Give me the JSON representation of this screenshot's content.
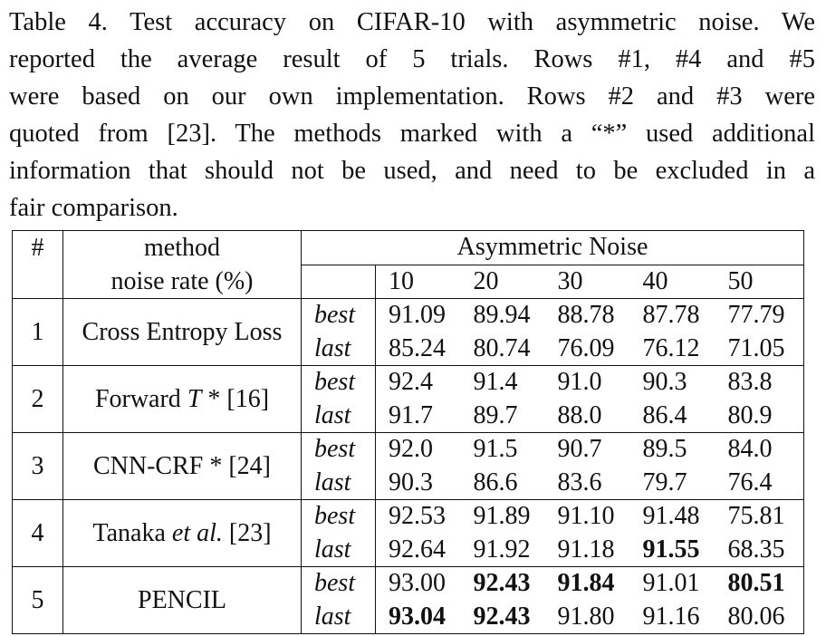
{
  "caption": {
    "lines": [
      "Table 4. Test accuracy on CIFAR-10 with asymmetric noise. We",
      "reported the average result of 5 trials.  Rows #1, #4 and #5",
      "were based on our own implementation. Rows #2 and #3 were",
      "quoted from [23]. The methods marked with a “*” used additional",
      "information that should not be used, and need to be excluded in a",
      "fair comparison."
    ]
  },
  "table": {
    "header": {
      "idx": "#",
      "method": "method",
      "group": "Asymmetric Noise",
      "noise_label": "noise rate (%)",
      "rates": [
        "10",
        "20",
        "30",
        "40",
        "50"
      ]
    },
    "rows": [
      {
        "idx": "1",
        "method": "Cross Entropy Loss",
        "best_label": "best",
        "last_label": "last",
        "best": [
          "91.09",
          "89.94",
          "88.78",
          "87.78",
          "77.79"
        ],
        "last": [
          "85.24",
          "80.74",
          "76.09",
          "76.12",
          "71.05"
        ]
      },
      {
        "idx": "2",
        "method_pre": "Forward ",
        "method_it": "T",
        "method_post": " * [16]",
        "best_label": "best",
        "last_label": "last",
        "best": [
          "92.4",
          "91.4",
          "91.0",
          "90.3",
          "83.8"
        ],
        "last": [
          "91.7",
          "89.7",
          "88.0",
          "86.4",
          "80.9"
        ]
      },
      {
        "idx": "3",
        "method": "CNN-CRF * [24]",
        "best_label": "best",
        "last_label": "last",
        "best": [
          "92.0",
          "91.5",
          "90.7",
          "89.5",
          "84.0"
        ],
        "last": [
          "90.3",
          "86.6",
          "83.6",
          "79.7",
          "76.4"
        ]
      },
      {
        "idx": "4",
        "method_pre": "Tanaka ",
        "method_it": "et al.",
        "method_post": " [23]",
        "best_label": "best",
        "last_label": "last",
        "best": [
          "92.53",
          "91.89",
          "91.10",
          "91.48",
          "75.81"
        ],
        "last": [
          "92.64",
          "91.92",
          "91.18",
          "91.55",
          "68.35"
        ]
      },
      {
        "idx": "5",
        "method": "PENCIL",
        "best_label": "best",
        "last_label": "last",
        "best": [
          "93.00",
          "92.43",
          "91.84",
          "91.01",
          "80.51"
        ],
        "last": [
          "93.04",
          "92.43",
          "91.80",
          "91.16",
          "80.06"
        ]
      }
    ]
  }
}
